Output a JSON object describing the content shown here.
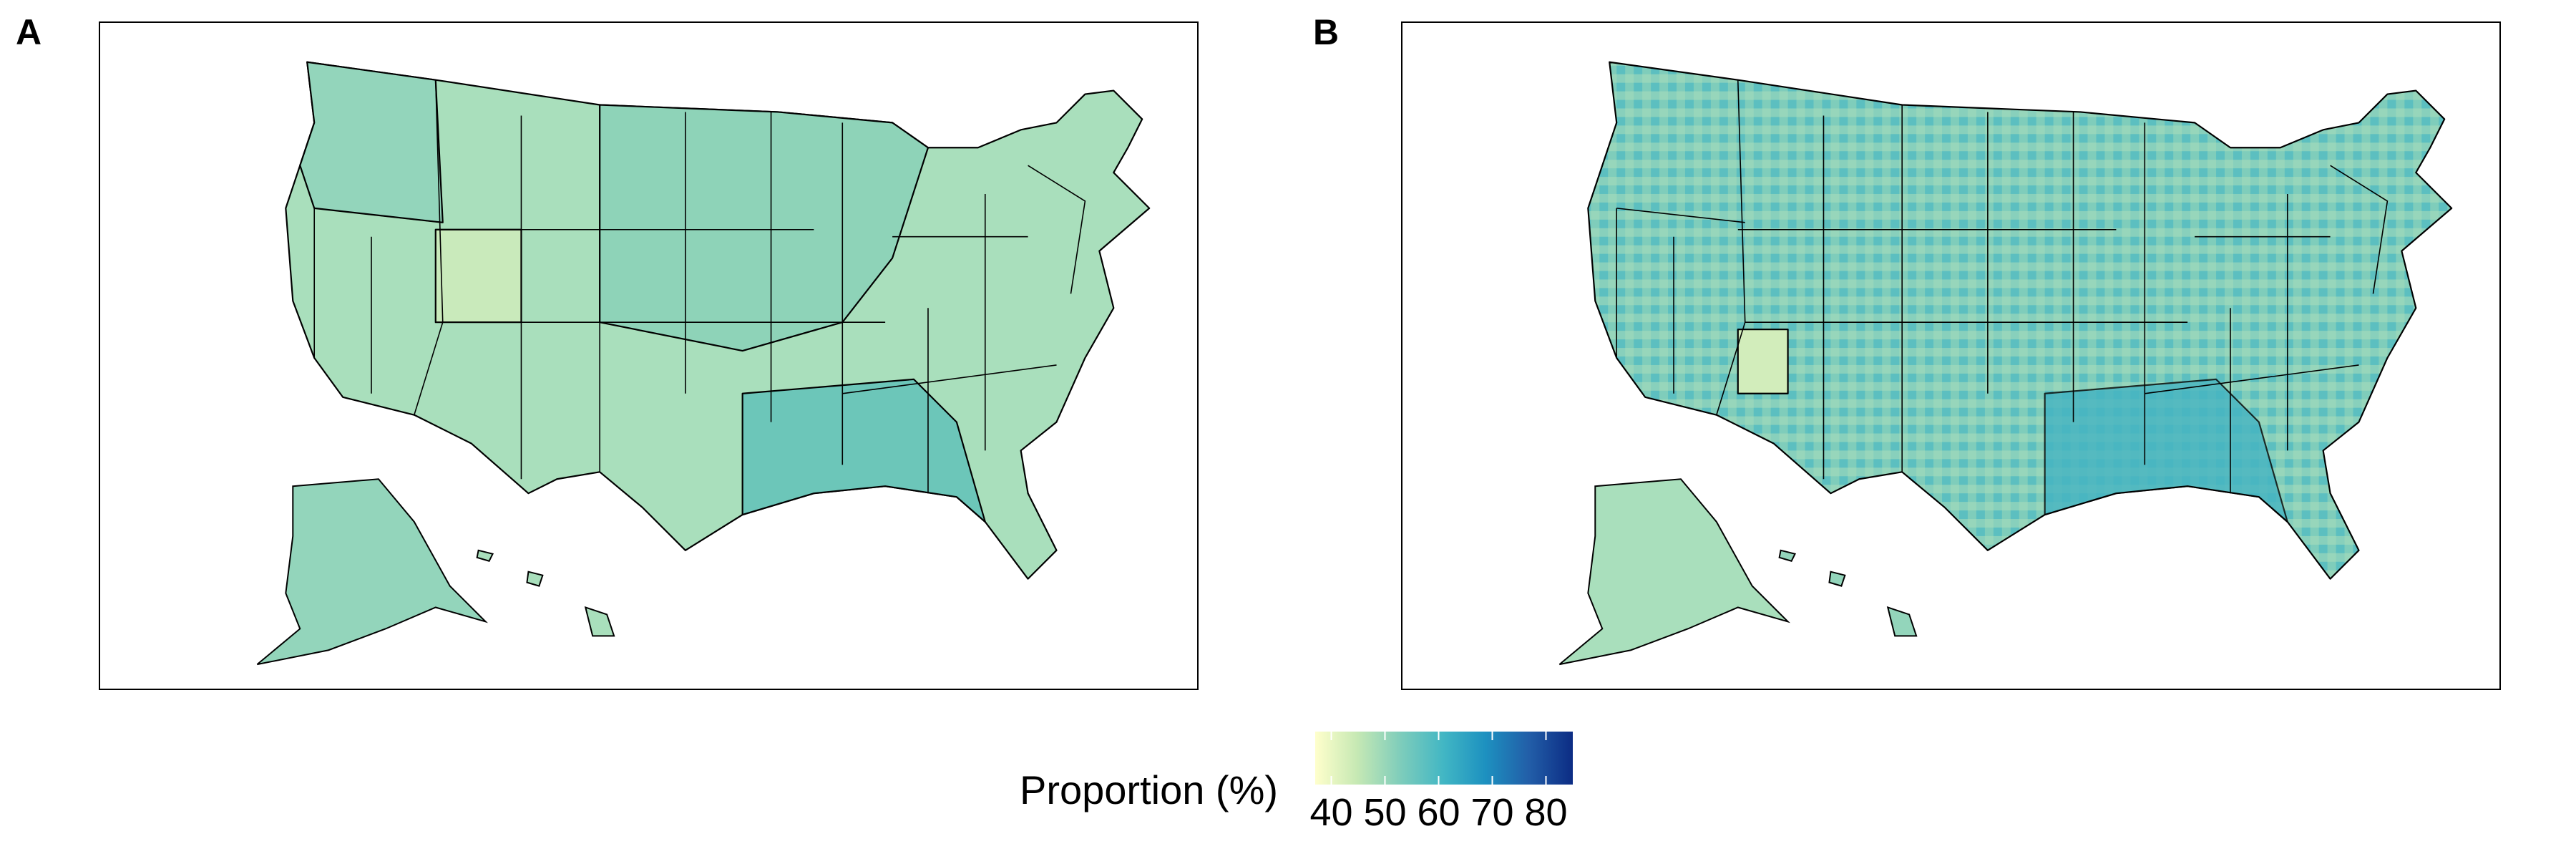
{
  "panels": [
    {
      "letter": "A",
      "resolution": "state"
    },
    {
      "letter": "B",
      "resolution": "county"
    }
  ],
  "legend": {
    "title": "Proportion (%)",
    "ticks": [
      "40",
      "50",
      "60",
      "70",
      "80"
    ],
    "tick_values": [
      40,
      50,
      60,
      70,
      80
    ],
    "range": [
      37,
      85
    ],
    "color_stops": [
      "#ffffcc",
      "#c7e9b4",
      "#7fcdbb",
      "#41b6c4",
      "#1d91c0",
      "#225ea8",
      "#0c2c84"
    ]
  },
  "colors": {
    "outline": "#000000",
    "state_fill_typical": "#8ed3b8",
    "state_fill_low": "#c9eabb",
    "state_fill_high": "#6cc6b9",
    "county_fill_typical": "#79c9bc"
  }
}
